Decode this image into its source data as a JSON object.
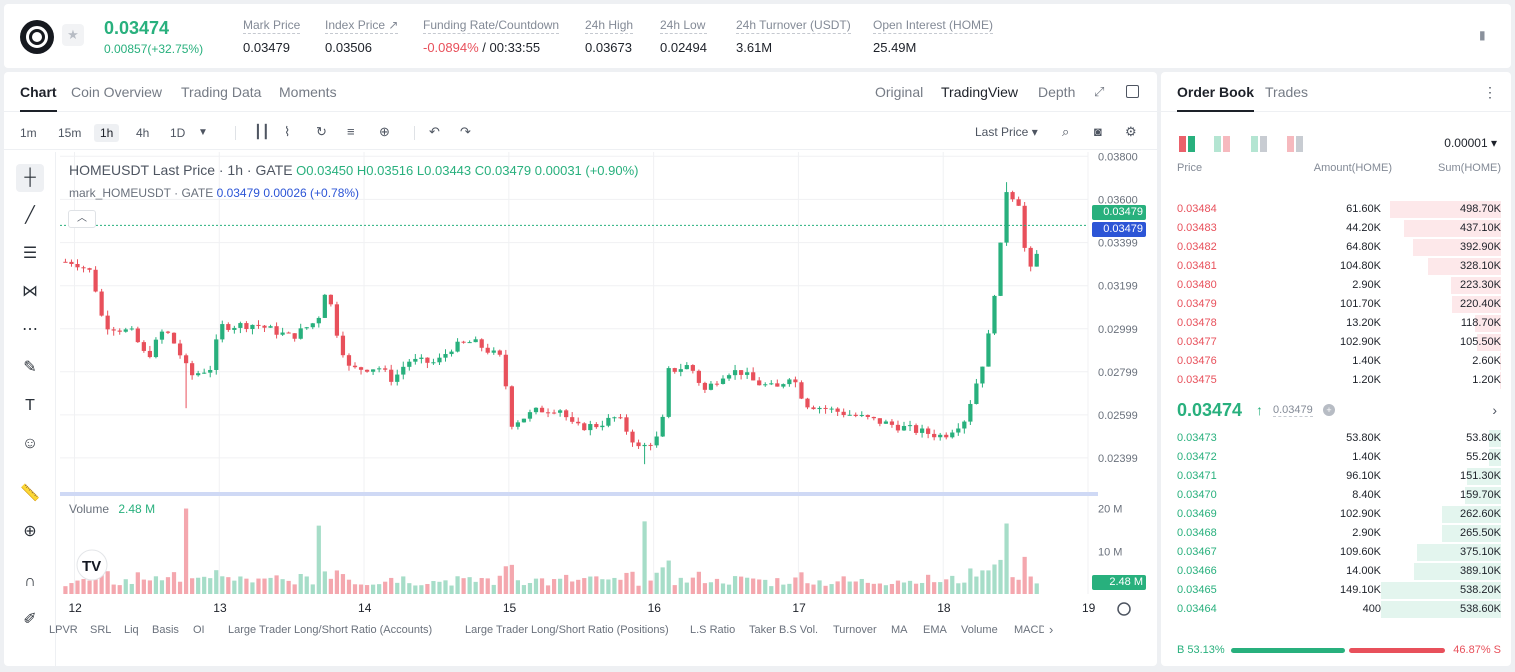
{
  "header": {
    "last_price": "0.03474",
    "change": "0.00857(+32.75%)",
    "stats": [
      {
        "label": "Mark Price",
        "value": "0.03479"
      },
      {
        "label": "Index Price ↗",
        "value": "0.03506"
      },
      {
        "label": "Funding Rate/Countdown",
        "value_neg": "-0.0894%",
        "value": "/ 00:33:55"
      },
      {
        "label": "24h High",
        "value": "0.03673"
      },
      {
        "label": "24h Low",
        "value": "0.02494"
      },
      {
        "label": "24h Turnover (USDT)",
        "value": "3.61M"
      },
      {
        "label": "Open Interest (HOME)",
        "value": "25.49M"
      }
    ]
  },
  "chart_tabs": [
    "Chart",
    "Coin Overview",
    "Trading Data",
    "Moments"
  ],
  "view_tabs": [
    "Original",
    "TradingView",
    "Depth"
  ],
  "timeframes": [
    "1m",
    "15m",
    "1h",
    "4h",
    "1D"
  ],
  "active_timeframe": "1h",
  "price_type": "Last Price ▾",
  "legend": {
    "symbol": "HOMEUSDT Last Price · 1h · GATE",
    "o": "O0.03450",
    "h": "H0.03516",
    "l": "L0.03443",
    "c": "C0.03479",
    "chg": "0.00031 (+0.90%)",
    "mark_label": "mark_HOMEUSDT · GATE",
    "mark_val": "0.03479",
    "mark_chg": "0.00026 (+0.78%)",
    "volume_label": "Volume",
    "volume_val": "2.48 M"
  },
  "price_axis": [
    "0.03800",
    "0.03600",
    "0.03399",
    "0.03199",
    "0.02999",
    "0.02799",
    "0.02599",
    "0.02399"
  ],
  "price_tags": {
    "last": "0.03479",
    "mark": "0.03479",
    "vol": "2.48 M"
  },
  "volume_axis": [
    "20 M",
    "10 M"
  ],
  "time_axis": [
    "12",
    "13",
    "14",
    "15",
    "16",
    "17",
    "18",
    "19"
  ],
  "indicators": [
    "LPVR",
    "SRL",
    "Liq",
    "Basis",
    "OI",
    "Large Trader Long/Short Ratio (Accounts)",
    "Large Trader Long/Short Ratio (Positions)",
    "L.S Ratio",
    "Taker B.S Vol.",
    "Turnover",
    "MA",
    "EMA",
    "Volume",
    "MACD"
  ],
  "chart_data": {
    "type": "candlestick",
    "symbol": "HOMEUSDT",
    "interval": "1h",
    "ylim": [
      0.0225,
      0.0382
    ],
    "volume_ylim": [
      0,
      22000000
    ],
    "x_labels": [
      "12",
      "13",
      "14",
      "15",
      "16",
      "17",
      "18",
      "19"
    ],
    "close_points": [
      {
        "day": 12.0,
        "close": 0.0331
      },
      {
        "day": 12.12,
        "close": 0.0326
      },
      {
        "day": 12.2,
        "close": 0.0302
      },
      {
        "day": 12.4,
        "close": 0.0298
      },
      {
        "day": 12.5,
        "close": 0.0286
      },
      {
        "day": 12.62,
        "close": 0.03
      },
      {
        "day": 12.7,
        "close": 0.0292
      },
      {
        "day": 12.8,
        "close": 0.0278
      },
      {
        "day": 12.95,
        "close": 0.0282
      },
      {
        "day": 13.0,
        "close": 0.0301
      },
      {
        "day": 13.25,
        "close": 0.0302
      },
      {
        "day": 13.5,
        "close": 0.0296
      },
      {
        "day": 13.68,
        "close": 0.0304
      },
      {
        "day": 13.74,
        "close": 0.032
      },
      {
        "day": 13.82,
        "close": 0.0296
      },
      {
        "day": 13.9,
        "close": 0.0281
      },
      {
        "day": 14.1,
        "close": 0.0282
      },
      {
        "day": 14.2,
        "close": 0.0276
      },
      {
        "day": 14.3,
        "close": 0.0285
      },
      {
        "day": 14.5,
        "close": 0.0284
      },
      {
        "day": 14.6,
        "close": 0.0291
      },
      {
        "day": 14.75,
        "close": 0.0294
      },
      {
        "day": 14.85,
        "close": 0.029
      },
      {
        "day": 14.95,
        "close": 0.0286
      },
      {
        "day": 15.02,
        "close": 0.0256
      },
      {
        "day": 15.2,
        "close": 0.0262
      },
      {
        "day": 15.35,
        "close": 0.0263
      },
      {
        "day": 15.45,
        "close": 0.0254
      },
      {
        "day": 15.6,
        "close": 0.0255
      },
      {
        "day": 15.75,
        "close": 0.0259
      },
      {
        "day": 15.9,
        "close": 0.0244
      },
      {
        "day": 16.05,
        "close": 0.025
      },
      {
        "day": 16.1,
        "close": 0.028
      },
      {
        "day": 16.25,
        "close": 0.0283
      },
      {
        "day": 16.35,
        "close": 0.0271
      },
      {
        "day": 16.5,
        "close": 0.028
      },
      {
        "day": 16.6,
        "close": 0.028
      },
      {
        "day": 16.7,
        "close": 0.0275
      },
      {
        "day": 16.85,
        "close": 0.0272
      },
      {
        "day": 16.95,
        "close": 0.0279
      },
      {
        "day": 17.05,
        "close": 0.0265
      },
      {
        "day": 17.3,
        "close": 0.0261
      },
      {
        "day": 17.6,
        "close": 0.0256
      },
      {
        "day": 17.85,
        "close": 0.0252
      },
      {
        "day": 18.0,
        "close": 0.025
      },
      {
        "day": 18.15,
        "close": 0.0258
      },
      {
        "day": 18.3,
        "close": 0.029
      },
      {
        "day": 18.4,
        "close": 0.034
      },
      {
        "day": 18.43,
        "close": 0.0365
      },
      {
        "day": 18.53,
        "close": 0.0358
      },
      {
        "day": 18.58,
        "close": 0.0326
      },
      {
        "day": 18.63,
        "close": 0.0328
      },
      {
        "day": 18.68,
        "close": 0.0347
      }
    ],
    "spike_wicks": [
      {
        "day": 12.75,
        "low": 0.0263
      },
      {
        "day": 15.92,
        "low": 0.0237
      },
      {
        "day": 18.43,
        "high": 0.0368
      }
    ],
    "volume_points": [
      {
        "day": 12.76,
        "volume": 20000000
      },
      {
        "day": 13.7,
        "volume": 16000000
      },
      {
        "day": 15.95,
        "volume": 17000000
      },
      {
        "day": 18.45,
        "volume": 16500000
      },
      {
        "day": 18.65,
        "volume": 2480000
      }
    ]
  },
  "order_book": {
    "tabs": [
      "Order Book",
      "Trades"
    ],
    "precision": "0.00001 ▾",
    "col_price": "Price",
    "col_amount": "Amount(HOME)",
    "col_sum": "Sum(HOME)",
    "asks": [
      {
        "price": "0.03484",
        "amount": "61.60K",
        "sum": "498.70K",
        "depth": 0.926
      },
      {
        "price": "0.03483",
        "amount": "44.20K",
        "sum": "437.10K",
        "depth": 0.812
      },
      {
        "price": "0.03482",
        "amount": "64.80K",
        "sum": "392.90K",
        "depth": 0.73
      },
      {
        "price": "0.03481",
        "amount": "104.80K",
        "sum": "328.10K",
        "depth": 0.609
      },
      {
        "price": "0.03480",
        "amount": "2.90K",
        "sum": "223.30K",
        "depth": 0.415
      },
      {
        "price": "0.03479",
        "amount": "101.70K",
        "sum": "220.40K",
        "depth": 0.409
      },
      {
        "price": "0.03478",
        "amount": "13.20K",
        "sum": "118.70K",
        "depth": 0.22
      },
      {
        "price": "0.03477",
        "amount": "102.90K",
        "sum": "105.50K",
        "depth": 0.196
      },
      {
        "price": "0.03476",
        "amount": "1.40K",
        "sum": "2.60K",
        "depth": 0.005
      },
      {
        "price": "0.03475",
        "amount": "1.20K",
        "sum": "1.20K",
        "depth": 0.002
      }
    ],
    "mid_price": "0.03474",
    "mid_arrow": "↑",
    "mid_mark": "0.03479",
    "bids": [
      {
        "price": "0.03473",
        "amount": "53.80K",
        "sum": "53.80K",
        "depth": 0.1
      },
      {
        "price": "0.03472",
        "amount": "1.40K",
        "sum": "55.20K",
        "depth": 0.102
      },
      {
        "price": "0.03471",
        "amount": "96.10K",
        "sum": "151.30K",
        "depth": 0.281
      },
      {
        "price": "0.03470",
        "amount": "8.40K",
        "sum": "159.70K",
        "depth": 0.297
      },
      {
        "price": "0.03469",
        "amount": "102.90K",
        "sum": "262.60K",
        "depth": 0.488
      },
      {
        "price": "0.03468",
        "amount": "2.90K",
        "sum": "265.50K",
        "depth": 0.493
      },
      {
        "price": "0.03467",
        "amount": "109.60K",
        "sum": "375.10K",
        "depth": 0.697
      },
      {
        "price": "0.03466",
        "amount": "14.00K",
        "sum": "389.10K",
        "depth": 0.723
      },
      {
        "price": "0.03465",
        "amount": "149.10K",
        "sum": "538.20K",
        "depth": 1.0
      },
      {
        "price": "0.03464",
        "amount": "400",
        "sum": "538.60K",
        "depth": 1.0
      }
    ],
    "buy_ratio": "B 53.13%",
    "sell_ratio": "46.87% S",
    "buy_fraction": 0.5313,
    "colors": {
      "ask": "#e8505b",
      "bid": "#28b07d"
    }
  }
}
